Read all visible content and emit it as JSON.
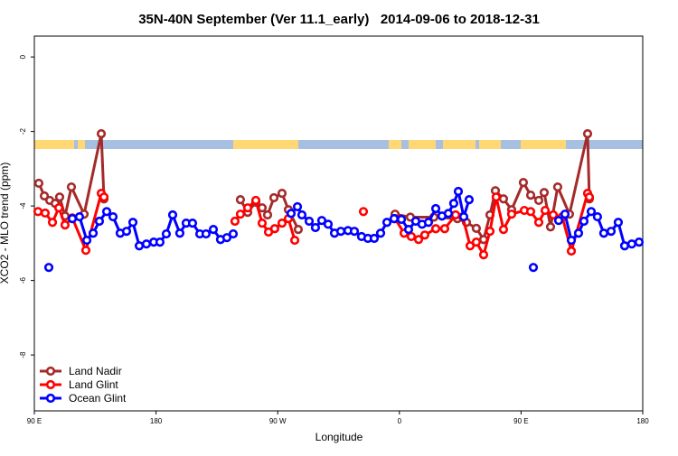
{
  "chart_data": {
    "type": "line",
    "title": "35N-40N September (Ver 11.1_early)   2014-09-06 to 2018-12-31",
    "x_label": "Longitude",
    "y_label": "XCO2 - MLO trend (ppm)",
    "xlim": [
      90,
      540
    ],
    "ylim": [
      -9.5,
      0.56
    ],
    "xticks": [
      {
        "value": 90,
        "label": "90 E"
      },
      180,
      {
        "value": 270,
        "label": "90 W"
      },
      0,
      {
        "value": 450,
        "label": "90 E"
      },
      {
        "value": 540,
        "label": "180"
      }
    ],
    "yticks": [
      0,
      -2,
      -4,
      -6,
      -8
    ],
    "legend": "bottom-left",
    "series": [
      {
        "name": "Land Nadir",
        "color": "#a52a2a",
        "x": [
          93.3,
          97.4,
          101.4,
          105.4,
          108.7,
          112.7,
          117.4,
          126.8,
          139.5,
          141.5,
          null,
          242.4,
          247.8,
          253.8,
          258.5,
          262.5,
          267.2,
          273.2,
          277.9,
          285.2,
          null,
          356.8,
          368.1,
          385.5,
          402.9,
          409.6,
          416.9,
          422.3,
          427.0,
          431.0,
          437.0,
          443.0,
          451.7,
          457.1,
          463.1,
          467.1,
          471.8,
          477.1,
          485.8,
          499.2,
          500.5
        ],
        "values": [
          -3.39,
          -3.73,
          -3.85,
          -3.93,
          -3.76,
          -4.27,
          -3.49,
          -4.22,
          -2.06,
          -3.81,
          null,
          -3.83,
          -4.17,
          -3.9,
          -4.05,
          -4.24,
          -3.78,
          -3.66,
          -4.1,
          -4.63,
          null,
          -4.22,
          -4.3,
          -4.3,
          -4.34,
          -4.44,
          -4.6,
          -4.9,
          -4.24,
          -3.59,
          -3.81,
          -4.1,
          -3.37,
          -3.71,
          -3.85,
          -3.64,
          -4.56,
          -3.49,
          -4.22,
          -2.06,
          -3.81
        ]
      },
      {
        "name": "Land Glint",
        "color": "#ff0000",
        "x": [
          92.7,
          98.0,
          103.4,
          108.1,
          112.7,
          118.1,
          128.1,
          139.5,
          141.5,
          null,
          238.4,
          242.4,
          247.8,
          253.8,
          258.5,
          263.2,
          267.8,
          273.2,
          277.9,
          282.6,
          null,
          333.4,
          null,
          356.8,
          363.5,
          368.8,
          374.2,
          378.8,
          386.9,
          393.5,
          401.6,
          406.9,
          412.3,
          416.9,
          422.3,
          427.0,
          431.6,
          437.0,
          443.0,
          452.4,
          457.1,
          463.1,
          467.8,
          473.8,
          480.5,
          487.2,
          499.2,
          500.5
        ],
        "values": [
          -4.15,
          -4.19,
          -4.44,
          -4.05,
          -4.51,
          -4.32,
          -5.19,
          -3.66,
          -3.76,
          null,
          -4.41,
          -4.22,
          -4.05,
          -3.85,
          -4.46,
          -4.7,
          -4.61,
          -4.46,
          -4.34,
          -4.92,
          null,
          -4.15,
          null,
          -4.34,
          -4.73,
          -4.82,
          -4.9,
          -4.78,
          -4.61,
          -4.61,
          -4.24,
          -4.29,
          -5.07,
          -4.97,
          -5.31,
          -4.68,
          -3.76,
          -4.63,
          -4.22,
          -4.12,
          -4.15,
          -4.44,
          -4.12,
          -4.24,
          -4.29,
          -5.21,
          -3.66,
          -3.76
        ]
      },
      {
        "name": "Ocean Glint",
        "color": "#0000ff",
        "x": [
          100.7,
          null,
          118.1,
          123.4,
          128.8,
          133.5,
          138.1,
          143.5,
          148.2,
          153.5,
          158.2,
          162.9,
          167.6,
          172.9,
          178.3,
          182.9,
          187.6,
          192.3,
          197.6,
          202.3,
          207.0,
          212.4,
          217.0,
          222.4,
          227.7,
          232.4,
          237.1,
          null,
          279.9,
          284.6,
          287.9,
          293.3,
          297.9,
          302.6,
          307.3,
          312.0,
          316.7,
          322.0,
          326.7,
          332.0,
          336.7,
          341.4,
          346.1,
          350.8,
          356.1,
          361.5,
          366.8,
          372.1,
          376.8,
          381.5,
          386.9,
          391.5,
          396.2,
          400.2,
          403.6,
          407.6,
          411.6,
          null,
          459.1,
          null,
          477.8,
          482.5,
          487.2,
          492.5,
          496.5,
          501.9,
          506.5,
          511.2,
          516.6,
          521.9,
          526.6,
          531.9,
          537.3
        ],
        "values": [
          -5.65,
          null,
          -4.34,
          -4.29,
          -4.92,
          -4.73,
          -4.41,
          -4.15,
          -4.29,
          -4.73,
          -4.68,
          -4.44,
          -5.07,
          -5.02,
          -4.97,
          -4.97,
          -4.75,
          -4.24,
          -4.73,
          -4.46,
          -4.46,
          -4.75,
          -4.75,
          -4.63,
          -4.9,
          -4.85,
          -4.75,
          null,
          -4.2,
          -4.02,
          -4.24,
          -4.41,
          -4.58,
          -4.39,
          -4.49,
          -4.73,
          -4.68,
          -4.66,
          -4.68,
          -4.82,
          -4.87,
          -4.87,
          -4.73,
          -4.44,
          -4.34,
          -4.36,
          -4.63,
          -4.41,
          -4.49,
          -4.44,
          -4.07,
          -4.27,
          -4.2,
          -3.93,
          -3.61,
          -4.29,
          -3.83,
          null,
          -5.65,
          null,
          -4.39,
          -4.22,
          -4.92,
          -4.73,
          -4.41,
          -4.15,
          -4.29,
          -4.73,
          -4.68,
          -4.44,
          -5.07,
          -5.02,
          -4.97
        ]
      }
    ]
  }
}
